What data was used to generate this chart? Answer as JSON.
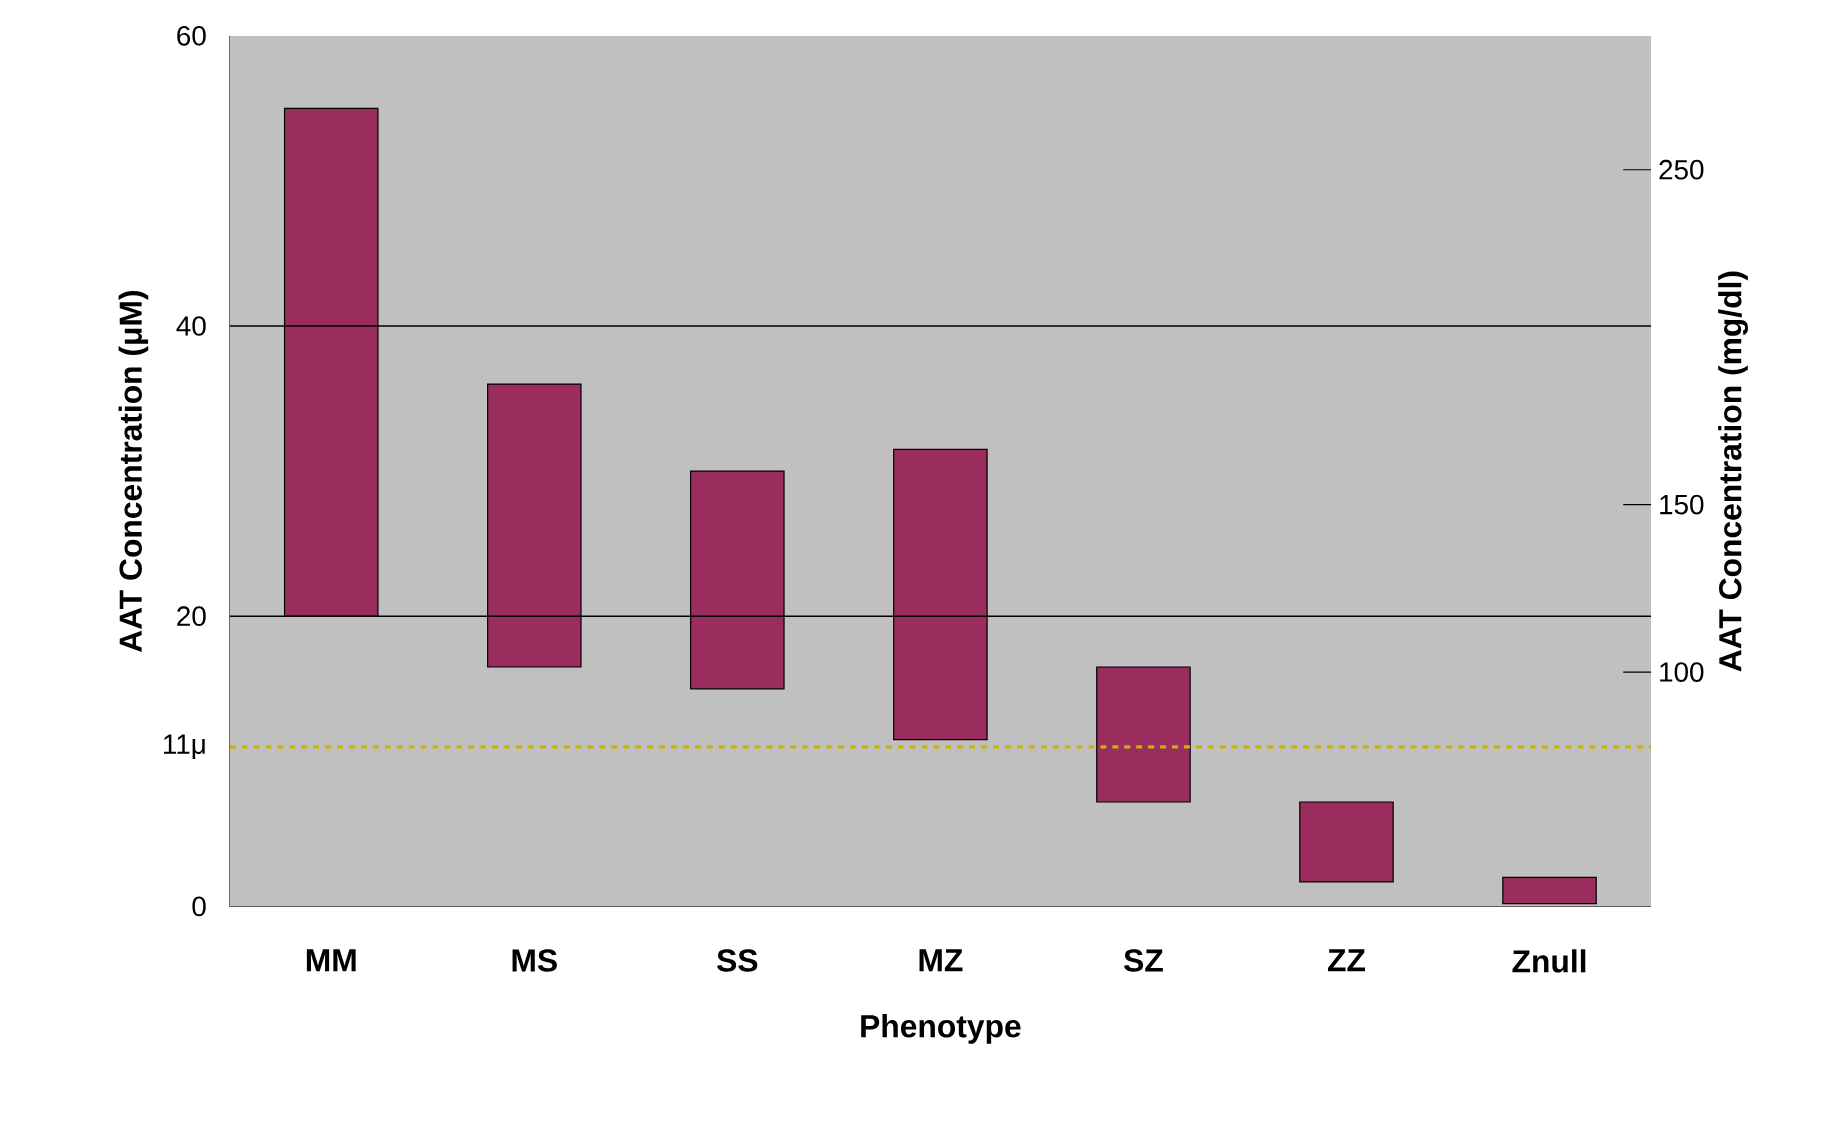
{
  "chart_data": {
    "type": "bar",
    "xlabel": "Phenotype",
    "ylabel": "AAT Concentration (μM)",
    "y2label": "AAT Concentration (mg/dl)",
    "categories": [
      "MM",
      "MS",
      "SS",
      "MZ",
      "SZ",
      "ZZ",
      "Znull"
    ],
    "base": [
      20,
      16.5,
      15,
      11.5,
      7.2,
      1.7,
      0.2
    ],
    "values": [
      35,
      19.5,
      15,
      20,
      9.3,
      5.5,
      1.8
    ],
    "color": "#9b2d5e",
    "ylim": [
      0,
      60
    ],
    "yticks": [
      0,
      {
        "value": 11,
        "label": "11μ"
      },
      20,
      40,
      60
    ],
    "y2lim": [
      30,
      290
    ],
    "y2ticks": [
      100,
      150,
      250
    ],
    "ref_lines": [
      {
        "axis": "y",
        "value": 40,
        "color": "#000000",
        "line_style": "solid"
      },
      {
        "axis": "y",
        "value": 20,
        "color": "#000000",
        "line_style": "solid"
      },
      {
        "axis": "y",
        "value": 11,
        "color": "#c8b400",
        "line_style": "dashed"
      }
    ],
    "grid": false
  }
}
